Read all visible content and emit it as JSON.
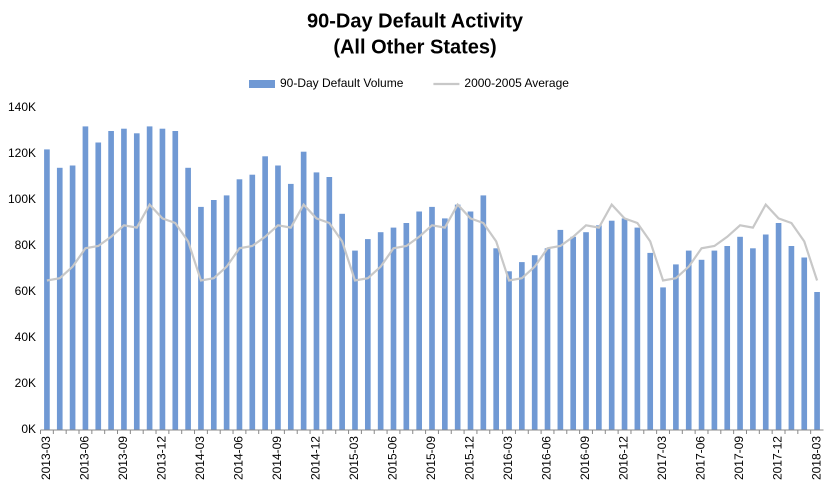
{
  "chart_data": {
    "type": "bar",
    "title": "90-Day Default Activity",
    "subtitle": "(All Other States)",
    "categories": [
      "2013-03",
      null,
      null,
      "2013-06",
      null,
      null,
      "2013-09",
      null,
      null,
      "2013-12",
      null,
      null,
      "2014-03",
      null,
      null,
      "2014-06",
      null,
      null,
      "2014-09",
      null,
      null,
      "2014-12",
      null,
      null,
      "2015-03",
      null,
      null,
      "2015-06",
      null,
      null,
      "2015-09",
      null,
      null,
      "2015-12",
      null,
      null,
      "2016-03",
      null,
      null,
      "2016-06",
      null,
      null,
      "2016-09",
      null,
      null,
      "2016-12",
      null,
      null,
      "2017-03",
      null,
      null,
      "2017-06",
      null,
      null,
      "2017-09",
      null,
      null,
      "2017-12",
      null,
      null,
      "2018-03"
    ],
    "series": [
      {
        "name": "90-Day Default Volume",
        "type": "bar",
        "color": "#7099d4",
        "values": [
          122,
          114,
          115,
          132,
          125,
          130,
          131,
          129,
          132,
          131,
          130,
          114,
          97,
          100,
          102,
          109,
          111,
          119,
          115,
          107,
          121,
          112,
          110,
          94,
          78,
          83,
          86,
          88,
          90,
          95,
          97,
          92,
          98,
          95,
          102,
          79,
          69,
          73,
          76,
          79,
          87,
          84,
          86,
          89,
          91,
          92,
          88,
          77,
          62,
          72,
          78,
          74,
          78,
          80,
          84,
          79,
          85,
          90,
          80,
          75,
          60
        ]
      },
      {
        "name": "2000-2005 Average",
        "type": "line",
        "color": "#c8c8c8",
        "values": [
          65,
          66,
          71,
          79,
          80,
          84,
          89,
          88,
          98,
          92,
          90,
          82,
          65,
          66,
          71,
          79,
          80,
          84,
          89,
          88,
          98,
          92,
          90,
          82,
          65,
          66,
          71,
          79,
          80,
          84,
          89,
          88,
          98,
          92,
          90,
          82,
          65,
          66,
          71,
          79,
          80,
          84,
          89,
          88,
          98,
          92,
          90,
          82,
          65,
          66,
          71,
          79,
          80,
          84,
          89,
          88,
          98,
          92,
          90,
          82,
          65
        ]
      }
    ],
    "ylim": [
      0,
      140
    ],
    "yticks": [
      {
        "value": 0,
        "label": "0K"
      },
      {
        "value": 20,
        "label": "20K"
      },
      {
        "value": 40,
        "label": "40K"
      },
      {
        "value": 60,
        "label": "60K"
      },
      {
        "value": 80,
        "label": "80K"
      },
      {
        "value": 100,
        "label": "100K"
      },
      {
        "value": 120,
        "label": "120K"
      },
      {
        "value": 140,
        "label": "140K"
      }
    ],
    "grid": false,
    "legend": "top"
  }
}
